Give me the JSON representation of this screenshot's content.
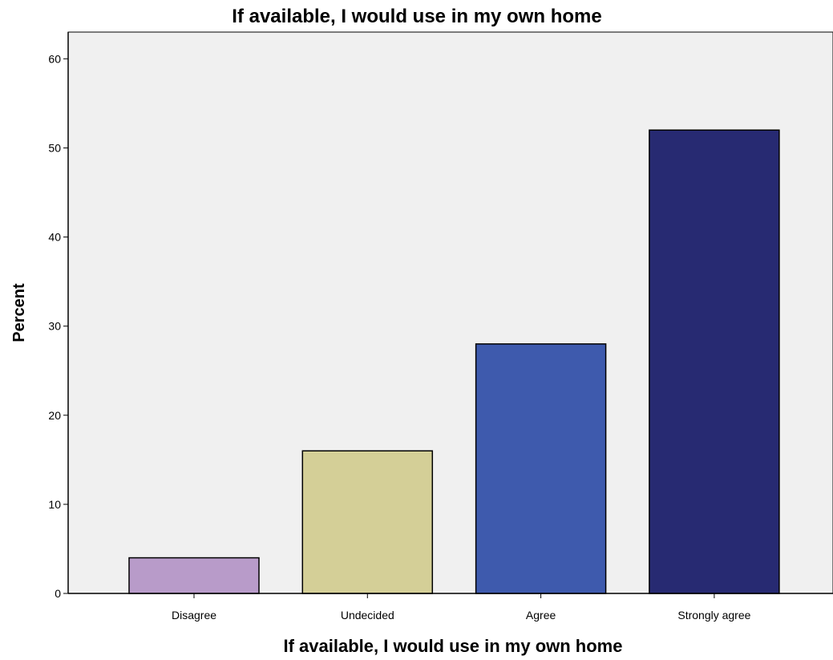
{
  "chart_data": {
    "type": "bar",
    "title": "If available, I would use in my own home",
    "xlabel": "If available, I would use in my own home",
    "ylabel": "Percent",
    "categories": [
      "Disagree",
      "Undecided",
      "Agree",
      "Strongly agree"
    ],
    "values": [
      4,
      16,
      28,
      52
    ],
    "colors": [
      "#b89bc9",
      "#d4cf97",
      "#3e5aad",
      "#272a72"
    ],
    "ylim": [
      0,
      63
    ],
    "yticks": [
      0,
      10,
      20,
      30,
      40,
      50,
      60
    ],
    "ytick_labels": [
      "0",
      "10",
      "20",
      "30",
      "40",
      "50",
      "60"
    ],
    "grid": false,
    "plot_background": "#f0f0f0",
    "bar_edge_color": "#000000"
  }
}
